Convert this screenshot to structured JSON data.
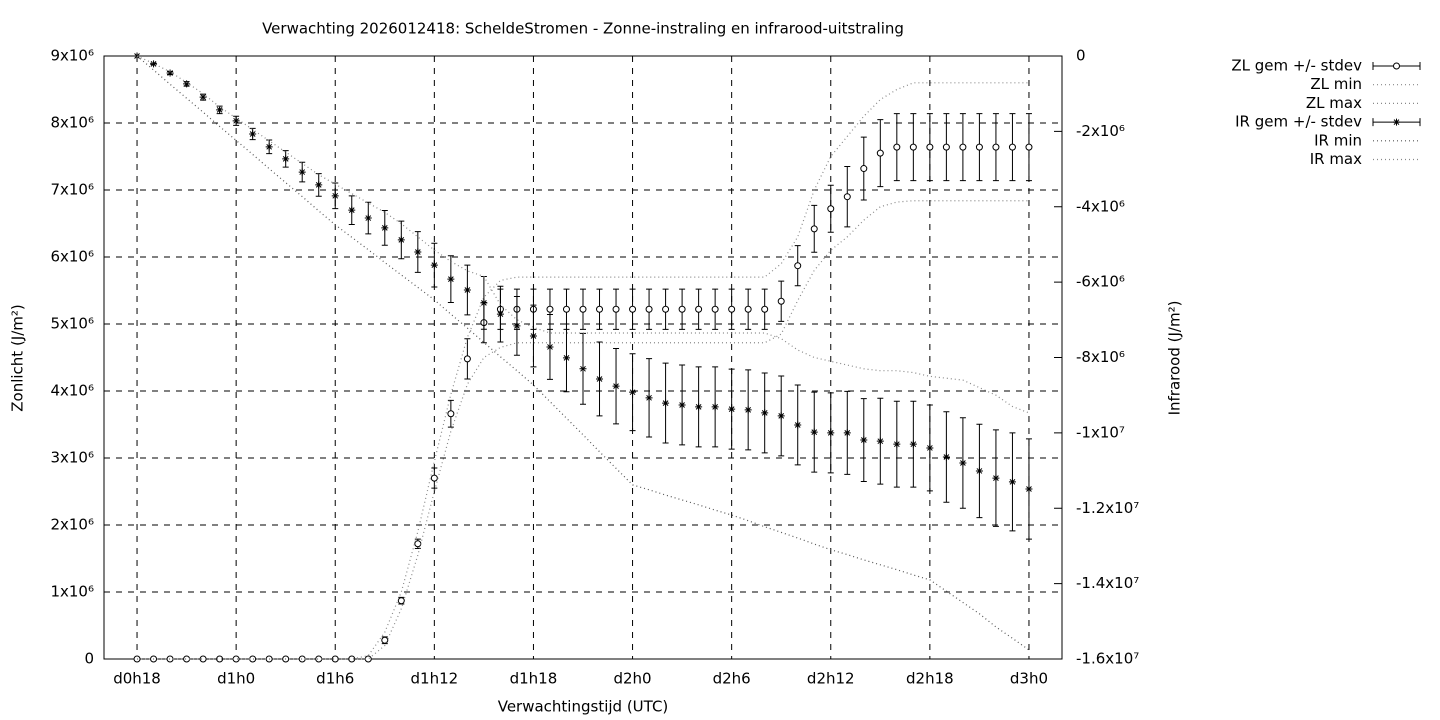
{
  "chart_data": {
    "type": "errorbar",
    "title": "Verwachting 2026012418: ScheldeStromen - Zonne-instraling en infrarood-uitstraling",
    "x_label": "Verwachtingstijd (UTC)",
    "y_label": "Zonlicht (J/m²)",
    "y2_label": "Infrarood (J/m²)",
    "grid": true,
    "legend": "outside-right-top",
    "xlim": [
      16,
      74
    ],
    "xticks": [
      {
        "value": 18,
        "label": "d0h18"
      },
      {
        "value": 24,
        "label": "d1h0"
      },
      {
        "value": 30,
        "label": "d1h6"
      },
      {
        "value": 36,
        "label": "d1h12"
      },
      {
        "value": 42,
        "label": "d1h18"
      },
      {
        "value": 48,
        "label": "d2h0"
      },
      {
        "value": 54,
        "label": "d2h6"
      },
      {
        "value": 60,
        "label": "d2h12"
      },
      {
        "value": 66,
        "label": "d2h18"
      },
      {
        "value": 72,
        "label": "d3h0"
      }
    ],
    "ylim": [
      0,
      9000000
    ],
    "yticks": [
      0,
      {
        "value": 1000000,
        "label": "1x10⁶"
      },
      {
        "value": 2000000,
        "label": "2x10⁶"
      },
      {
        "value": 3000000,
        "label": "3x10⁶"
      },
      {
        "value": 4000000,
        "label": "4x10⁶"
      },
      {
        "value": 5000000,
        "label": "5x10⁶"
      },
      {
        "value": 6000000,
        "label": "6x10⁶"
      },
      {
        "value": 7000000,
        "label": "7x10⁶"
      },
      {
        "value": 8000000,
        "label": "8x10⁶"
      },
      {
        "value": 9000000,
        "label": "9x10⁶"
      }
    ],
    "y2lim": [
      -16000000,
      0
    ],
    "y2ticks": [
      0,
      {
        "value": -2000000,
        "label": "-2x10⁶"
      },
      {
        "value": -4000000,
        "label": "-4x10⁶"
      },
      {
        "value": -6000000,
        "label": "-6x10⁶"
      },
      {
        "value": -8000000,
        "label": "-8x10⁶"
      },
      {
        "value": -10000000,
        "label": "-1x10⁷"
      },
      {
        "value": -12000000,
        "label": "-1.2x10⁷"
      },
      {
        "value": -14000000,
        "label": "-1.4x10⁷"
      },
      {
        "value": -16000000,
        "label": "-1.6x10⁷"
      }
    ],
    "x": [
      18,
      19,
      20,
      21,
      22,
      23,
      24,
      25,
      26,
      27,
      28,
      29,
      30,
      31,
      32,
      33,
      34,
      35,
      36,
      37,
      38,
      39,
      40,
      41,
      42,
      43,
      44,
      45,
      46,
      47,
      48,
      49,
      50,
      51,
      52,
      53,
      54,
      55,
      56,
      57,
      58,
      59,
      60,
      61,
      62,
      63,
      64,
      65,
      66,
      67,
      68,
      69,
      70,
      71,
      72
    ],
    "series": [
      {
        "name": "ZL gem +/- stdev",
        "style": "errorbars",
        "marker": "circle",
        "color": "#000000",
        "values": [
          0,
          0,
          0,
          0,
          0,
          0,
          0,
          0,
          0,
          0,
          0,
          0,
          0,
          0,
          0,
          280000,
          870000,
          1720000,
          2700000,
          3660000,
          4480000,
          5020000,
          5220000,
          5220000,
          5220000,
          5220000,
          5220000,
          5220000,
          5220000,
          5220000,
          5220000,
          5220000,
          5220000,
          5220000,
          5220000,
          5220000,
          5220000,
          5220000,
          5220000,
          5340000,
          5870000,
          6420000,
          6720000,
          6900000,
          7320000,
          7550000,
          7640000,
          7640000,
          7640000,
          7640000,
          7640000,
          7640000,
          7640000,
          7640000,
          7640000
        ],
        "errors": [
          0,
          0,
          0,
          0,
          0,
          0,
          0,
          0,
          0,
          0,
          0,
          0,
          0,
          0,
          0,
          50000,
          50000,
          70000,
          150000,
          200000,
          300000,
          300000,
          300000,
          300000,
          300000,
          300000,
          300000,
          300000,
          300000,
          300000,
          300000,
          300000,
          300000,
          300000,
          300000,
          300000,
          300000,
          300000,
          300000,
          300000,
          300000,
          350000,
          350000,
          450000,
          470000,
          500000,
          500000,
          500000,
          500000,
          500000,
          500000,
          500000,
          500000,
          500000,
          500000
        ]
      },
      {
        "name": "ZL min",
        "style": "dotted",
        "color": "#888888",
        "values": [
          0,
          0,
          0,
          0,
          0,
          0,
          0,
          0,
          0,
          0,
          0,
          0,
          0,
          0,
          0,
          200000,
          750000,
          1550000,
          2500000,
          3400000,
          4100000,
          4500000,
          4650000,
          4720000,
          4720000,
          4720000,
          4720000,
          4720000,
          4720000,
          4720000,
          4720000,
          4720000,
          4720000,
          4720000,
          4720000,
          4720000,
          4720000,
          4720000,
          4720000,
          4850000,
          5350000,
          5800000,
          6100000,
          6300000,
          6550000,
          6750000,
          6820000,
          6840000,
          6840000,
          6840000,
          6840000,
          6840000,
          6840000,
          6840000,
          6840000
        ]
      },
      {
        "name": "ZL max",
        "style": "dotted",
        "color": "#888888",
        "values": [
          0,
          0,
          0,
          0,
          0,
          0,
          0,
          0,
          0,
          0,
          0,
          0,
          0,
          0,
          50000,
          400000,
          1000000,
          1900000,
          2950000,
          3950000,
          4800000,
          5400000,
          5650000,
          5700000,
          5700000,
          5700000,
          5700000,
          5700000,
          5700000,
          5700000,
          5700000,
          5700000,
          5700000,
          5700000,
          5700000,
          5700000,
          5700000,
          5700000,
          5700000,
          5900000,
          6300000,
          7000000,
          7500000,
          7800000,
          8100000,
          8350000,
          8500000,
          8600000,
          8600000,
          8600000,
          8600000,
          8600000,
          8600000,
          8600000,
          8600000
        ]
      },
      {
        "name": "IR gem +/- stdev",
        "style": "errorbars",
        "marker": "star",
        "axis": "y2",
        "color": "#000000",
        "values": [
          0,
          -210000,
          -450000,
          -740000,
          -1090000,
          -1430000,
          -1720000,
          -2070000,
          -2410000,
          -2730000,
          -3080000,
          -3420000,
          -3710000,
          -4090000,
          -4300000,
          -4560000,
          -4880000,
          -5200000,
          -5550000,
          -5920000,
          -6210000,
          -6550000,
          -6850000,
          -7160000,
          -7430000,
          -7720000,
          -8010000,
          -8300000,
          -8570000,
          -8760000,
          -8920000,
          -9070000,
          -9210000,
          -9260000,
          -9310000,
          -9310000,
          -9370000,
          -9390000,
          -9470000,
          -9550000,
          -9790000,
          -9980000,
          -10000000,
          -10000000,
          -10190000,
          -10220000,
          -10300000,
          -10300000,
          -10400000,
          -10640000,
          -10800000,
          -11010000,
          -11200000,
          -11300000,
          -11490000
        ],
        "errors": [
          0,
          20000,
          40000,
          60000,
          80000,
          100000,
          120000,
          150000,
          180000,
          220000,
          260000,
          300000,
          340000,
          380000,
          420000,
          460000,
          500000,
          540000,
          580000,
          620000,
          660000,
          700000,
          740000,
          780000,
          820000,
          860000,
          900000,
          940000,
          980000,
          1000000,
          1020000,
          1040000,
          1060000,
          1060000,
          1060000,
          1060000,
          1060000,
          1060000,
          1060000,
          1060000,
          1060000,
          1060000,
          1060000,
          1100000,
          1100000,
          1140000,
          1140000,
          1140000,
          1140000,
          1200000,
          1200000,
          1240000,
          1280000,
          1300000,
          1330000
        ]
      },
      {
        "name": "IR min",
        "style": "dotted",
        "axis": "y2",
        "color": "#555555",
        "values": [
          0,
          -370000,
          -750000,
          -1120000,
          -1490000,
          -1870000,
          -2240000,
          -2610000,
          -2990000,
          -3360000,
          -3730000,
          -4110000,
          -4480000,
          -4810000,
          -5140000,
          -5480000,
          -5810000,
          -6140000,
          -6470000,
          -6850000,
          -7220000,
          -7600000,
          -7980000,
          -8350000,
          -8730000,
          -9170000,
          -9610000,
          -10050000,
          -10500000,
          -10940000,
          -11380000,
          -11510000,
          -11650000,
          -11780000,
          -11910000,
          -12050000,
          -12180000,
          -12330000,
          -12490000,
          -12640000,
          -12790000,
          -12950000,
          -13100000,
          -13230000,
          -13370000,
          -13500000,
          -13630000,
          -13770000,
          -13900000,
          -14200000,
          -14500000,
          -14800000,
          -15150000,
          -15450000,
          -15760000
        ]
      },
      {
        "name": "IR max",
        "style": "dotted",
        "axis": "y2",
        "color": "#888888",
        "values": [
          0,
          -200000,
          -420000,
          -700000,
          -1000000,
          -1350000,
          -1650000,
          -1950000,
          -2250000,
          -2550000,
          -2850000,
          -3150000,
          -3400000,
          -3650000,
          -3900000,
          -4150000,
          -4450000,
          -4800000,
          -5150000,
          -5450000,
          -5700000,
          -5850000,
          -6600000,
          -7000000,
          -7200000,
          -7350000,
          -7350000,
          -7350000,
          -7350000,
          -7350000,
          -7350000,
          -7350000,
          -7350000,
          -7350000,
          -7350000,
          -7350000,
          -7350000,
          -7350000,
          -7350000,
          -7500000,
          -7800000,
          -8000000,
          -8100000,
          -8200000,
          -8300000,
          -8350000,
          -8350000,
          -8400000,
          -8500000,
          -8550000,
          -8600000,
          -8800000,
          -9000000,
          -9300000,
          -9470000
        ]
      }
    ]
  }
}
